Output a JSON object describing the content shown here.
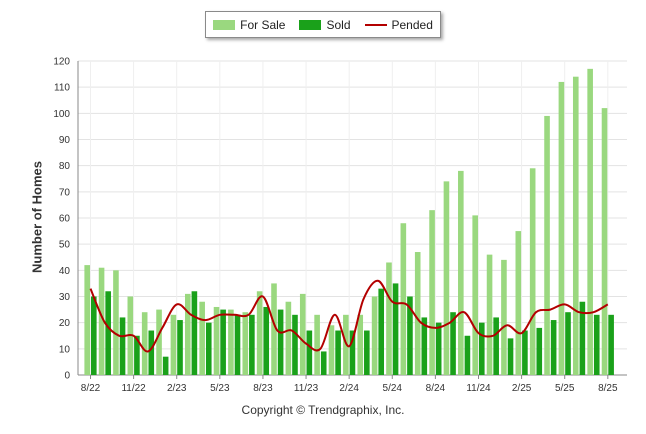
{
  "legend": {
    "for_sale": "For Sale",
    "sold": "Sold",
    "pended": "Pended"
  },
  "copyright": "Copyright © Trendgraphix, Inc.",
  "colors": {
    "for_sale": "#9ad87f",
    "sold": "#1aa11a",
    "pended": "#b30000",
    "grid": "#e3e3e3"
  },
  "chart_data": {
    "type": "bar",
    "ylabel": "Number of Homes",
    "ylim": [
      0,
      120
    ],
    "yticks": [
      0,
      10,
      20,
      30,
      40,
      50,
      60,
      70,
      80,
      90,
      100,
      110,
      120
    ],
    "grid": true,
    "legend_position": "top-center",
    "x_tick_labels": [
      "8/22",
      "11/22",
      "2/23",
      "5/23",
      "8/23",
      "11/23",
      "2/24",
      "5/24",
      "8/24",
      "11/24",
      "2/25",
      "5/25",
      "8/25"
    ],
    "x_tick_every": 3,
    "categories": [
      "8/22",
      "9/22",
      "10/22",
      "11/22",
      "12/22",
      "1/23",
      "2/23",
      "3/23",
      "4/23",
      "5/23",
      "6/23",
      "7/23",
      "8/23",
      "9/23",
      "10/23",
      "11/23",
      "12/23",
      "1/24",
      "2/24",
      "3/24",
      "4/24",
      "5/24",
      "6/24",
      "7/24",
      "8/24",
      "9/24",
      "10/24",
      "11/24",
      "12/24",
      "1/25",
      "2/25",
      "3/25",
      "4/25",
      "5/25",
      "6/25",
      "7/25",
      "8/25"
    ],
    "series": [
      {
        "name": "For Sale",
        "type": "bar",
        "values": [
          42,
          41,
          40,
          30,
          24,
          25,
          23,
          31,
          28,
          26,
          25,
          24,
          32,
          35,
          28,
          31,
          23,
          19,
          23,
          23,
          30,
          43,
          58,
          47,
          63,
          74,
          78,
          61,
          46,
          44,
          55,
          79,
          99,
          112,
          114,
          117,
          102
        ]
      },
      {
        "name": "Sold",
        "type": "bar",
        "values": [
          30,
          32,
          22,
          15,
          17,
          7,
          21,
          32,
          20,
          25,
          23,
          23,
          26,
          25,
          23,
          17,
          9,
          17,
          17,
          17,
          33,
          35,
          30,
          22,
          20,
          24,
          15,
          20,
          22,
          14,
          17,
          18,
          21,
          24,
          28,
          23,
          23
        ]
      },
      {
        "name": "Pended",
        "type": "line",
        "values": [
          33,
          20,
          15,
          15,
          9,
          18,
          27,
          23,
          21,
          23,
          23,
          23,
          30,
          17,
          17,
          12,
          10,
          23,
          11,
          29,
          36,
          28,
          27,
          20,
          18,
          20,
          24,
          16,
          15,
          19,
          16,
          24,
          25,
          27,
          24,
          24,
          27
        ]
      }
    ]
  }
}
